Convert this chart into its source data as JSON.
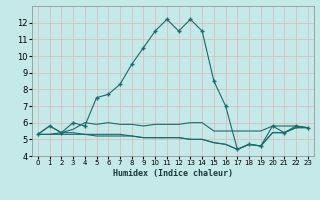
{
  "title": "",
  "xlabel": "Humidex (Indice chaleur)",
  "ylabel": "",
  "xlim": [
    -0.5,
    23.5
  ],
  "ylim": [
    4,
    13
  ],
  "xticks": [
    0,
    1,
    2,
    3,
    4,
    5,
    6,
    7,
    8,
    9,
    10,
    11,
    12,
    13,
    14,
    15,
    16,
    17,
    18,
    19,
    20,
    21,
    22,
    23
  ],
  "yticks": [
    4,
    5,
    6,
    7,
    8,
    9,
    10,
    11,
    12
  ],
  "bg_color": "#c5e8e8",
  "grid_color": "#d8b8b8",
  "line_color": "#1a6b6b",
  "curves": [
    {
      "x": [
        0,
        1,
        2,
        3,
        4,
        5,
        6,
        7,
        8,
        9,
        10,
        11,
        12,
        13,
        14,
        15,
        16,
        17,
        18,
        19,
        20,
        21,
        22,
        23
      ],
      "y": [
        5.3,
        5.8,
        5.4,
        6.0,
        5.8,
        7.5,
        7.7,
        8.3,
        9.5,
        10.5,
        11.5,
        12.2,
        11.5,
        12.2,
        11.5,
        8.5,
        7.0,
        4.4,
        4.7,
        4.6,
        5.8,
        5.4,
        5.8,
        5.7
      ],
      "marker": "+",
      "markersize": 3,
      "linewidth": 0.8,
      "linestyle": "-"
    },
    {
      "x": [
        0,
        1,
        2,
        3,
        4,
        5,
        6,
        7,
        8,
        9,
        10,
        11,
        12,
        13,
        14,
        15,
        16,
        17,
        18,
        19,
        20,
        21,
        22,
        23
      ],
      "y": [
        5.3,
        5.8,
        5.4,
        5.6,
        6.0,
        5.9,
        6.0,
        5.9,
        5.9,
        5.8,
        5.9,
        5.9,
        5.9,
        6.0,
        6.0,
        5.5,
        5.5,
        5.5,
        5.5,
        5.5,
        5.8,
        5.8,
        5.8,
        5.7
      ],
      "marker": null,
      "markersize": 0,
      "linewidth": 0.8,
      "linestyle": "-"
    },
    {
      "x": [
        0,
        1,
        2,
        3,
        4,
        5,
        6,
        7,
        8,
        9,
        10,
        11,
        12,
        13,
        14,
        15,
        16,
        17,
        18,
        19,
        20,
        21,
        22,
        23
      ],
      "y": [
        5.3,
        5.3,
        5.4,
        5.4,
        5.3,
        5.3,
        5.3,
        5.3,
        5.2,
        5.1,
        5.1,
        5.1,
        5.1,
        5.0,
        5.0,
        4.8,
        4.7,
        4.4,
        4.7,
        4.6,
        5.4,
        5.4,
        5.7,
        5.7
      ],
      "marker": null,
      "markersize": 0,
      "linewidth": 0.8,
      "linestyle": "-"
    },
    {
      "x": [
        0,
        1,
        2,
        3,
        4,
        5,
        6,
        7,
        8,
        9,
        10,
        11,
        12,
        13,
        14,
        15,
        16,
        17,
        18,
        19,
        20,
        21,
        22,
        23
      ],
      "y": [
        5.3,
        5.3,
        5.3,
        5.3,
        5.3,
        5.2,
        5.2,
        5.2,
        5.2,
        5.1,
        5.1,
        5.1,
        5.1,
        5.0,
        5.0,
        4.8,
        4.7,
        4.4,
        4.7,
        4.6,
        5.4,
        5.4,
        5.7,
        5.7
      ],
      "marker": null,
      "markersize": 0,
      "linewidth": 0.8,
      "linestyle": "-"
    }
  ]
}
